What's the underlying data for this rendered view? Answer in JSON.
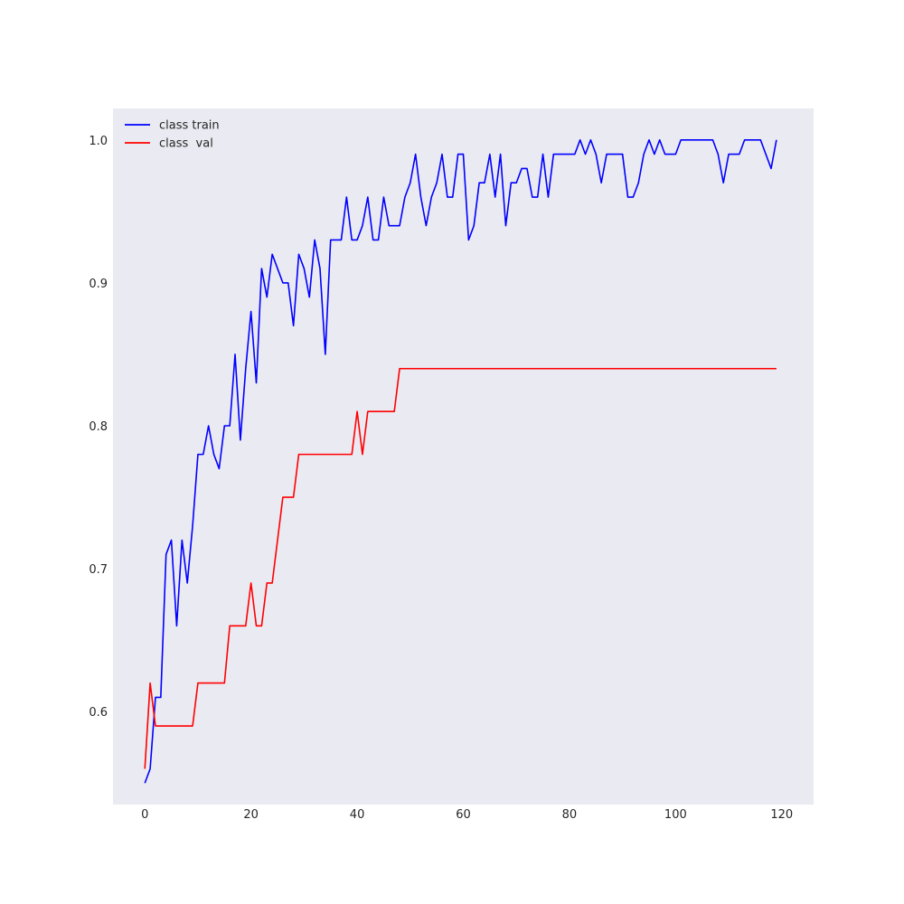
{
  "chart_data": {
    "type": "line",
    "title": "",
    "xlabel": "",
    "ylabel": "",
    "xlim": [
      -6,
      126
    ],
    "ylim": [
      0.535,
      1.022
    ],
    "grid": false,
    "background": "#eaeaf2",
    "legend_position": "top-left",
    "x_ticks": [
      0,
      20,
      40,
      60,
      80,
      100,
      120
    ],
    "y_ticks": [
      0.6,
      0.7,
      0.8,
      0.9,
      1.0
    ],
    "x_tick_labels": [
      "0",
      "20",
      "40",
      "60",
      "80",
      "100",
      "120"
    ],
    "y_tick_labels": [
      "0.6",
      "0.7",
      "0.8",
      "0.9",
      "1.0"
    ],
    "x": [
      0,
      1,
      2,
      3,
      4,
      5,
      6,
      7,
      8,
      9,
      10,
      11,
      12,
      13,
      14,
      15,
      16,
      17,
      18,
      19,
      20,
      21,
      22,
      23,
      24,
      25,
      26,
      27,
      28,
      29,
      30,
      31,
      32,
      33,
      34,
      35,
      36,
      37,
      38,
      39,
      40,
      41,
      42,
      43,
      44,
      45,
      46,
      47,
      48,
      49,
      50,
      51,
      52,
      53,
      54,
      55,
      56,
      57,
      58,
      59,
      60,
      61,
      62,
      63,
      64,
      65,
      66,
      67,
      68,
      69,
      70,
      71,
      72,
      73,
      74,
      75,
      76,
      77,
      78,
      79,
      80,
      81,
      82,
      83,
      84,
      85,
      86,
      87,
      88,
      89,
      90,
      91,
      92,
      93,
      94,
      95,
      96,
      97,
      98,
      99,
      100,
      101,
      102,
      103,
      104,
      105,
      106,
      107,
      108,
      109,
      110,
      111,
      112,
      113,
      114,
      115,
      116,
      117,
      118,
      119
    ],
    "series": [
      {
        "name": "class train",
        "color": "#0000ff",
        "values": [
          0.55,
          0.56,
          0.61,
          0.61,
          0.71,
          0.72,
          0.66,
          0.72,
          0.69,
          0.73,
          0.78,
          0.78,
          0.8,
          0.78,
          0.77,
          0.8,
          0.8,
          0.85,
          0.79,
          0.84,
          0.88,
          0.83,
          0.91,
          0.89,
          0.92,
          0.91,
          0.9,
          0.9,
          0.87,
          0.92,
          0.91,
          0.89,
          0.93,
          0.91,
          0.85,
          0.93,
          0.93,
          0.93,
          0.96,
          0.93,
          0.93,
          0.94,
          0.96,
          0.93,
          0.93,
          0.96,
          0.94,
          0.94,
          0.94,
          0.96,
          0.97,
          0.99,
          0.96,
          0.94,
          0.96,
          0.97,
          0.99,
          0.96,
          0.96,
          0.99,
          0.99,
          0.93,
          0.94,
          0.97,
          0.97,
          0.99,
          0.96,
          0.99,
          0.94,
          0.97,
          0.97,
          0.98,
          0.98,
          0.96,
          0.96,
          0.99,
          0.96,
          0.99,
          0.99,
          0.99,
          0.99,
          0.99,
          1.0,
          0.99,
          1.0,
          0.99,
          0.97,
          0.99,
          0.99,
          0.99,
          0.99,
          0.96,
          0.96,
          0.97,
          0.99,
          1.0,
          0.99,
          1.0,
          0.99,
          0.99,
          0.99,
          1.0,
          1.0,
          1.0,
          1.0,
          1.0,
          1.0,
          1.0,
          0.99,
          0.97,
          0.99,
          0.99,
          0.99,
          1.0,
          1.0,
          1.0,
          1.0,
          0.99,
          0.98,
          1.0
        ]
      },
      {
        "name": "class  val",
        "color": "#ff0000",
        "values": [
          0.56,
          0.62,
          0.59,
          0.59,
          0.59,
          0.59,
          0.59,
          0.59,
          0.59,
          0.59,
          0.62,
          0.62,
          0.62,
          0.62,
          0.62,
          0.62,
          0.66,
          0.66,
          0.66,
          0.66,
          0.69,
          0.66,
          0.66,
          0.69,
          0.69,
          0.72,
          0.75,
          0.75,
          0.75,
          0.78,
          0.78,
          0.78,
          0.78,
          0.78,
          0.78,
          0.78,
          0.78,
          0.78,
          0.78,
          0.78,
          0.81,
          0.78,
          0.81,
          0.81,
          0.81,
          0.81,
          0.81,
          0.81,
          0.84,
          0.84,
          0.84,
          0.84,
          0.84,
          0.84,
          0.84,
          0.84,
          0.84,
          0.84,
          0.84,
          0.84,
          0.84,
          0.84,
          0.84,
          0.84,
          0.84,
          0.84,
          0.84,
          0.84,
          0.84,
          0.84,
          0.84,
          0.84,
          0.84,
          0.84,
          0.84,
          0.84,
          0.84,
          0.84,
          0.84,
          0.84,
          0.84,
          0.84,
          0.84,
          0.84,
          0.84,
          0.84,
          0.84,
          0.84,
          0.84,
          0.84,
          0.84,
          0.84,
          0.84,
          0.84,
          0.84,
          0.84,
          0.84,
          0.84,
          0.84,
          0.84,
          0.84,
          0.84,
          0.84,
          0.84,
          0.84,
          0.84,
          0.84,
          0.84,
          0.84,
          0.84,
          0.84,
          0.84,
          0.84,
          0.84,
          0.84,
          0.84,
          0.84,
          0.84,
          0.84,
          0.84
        ]
      }
    ]
  }
}
